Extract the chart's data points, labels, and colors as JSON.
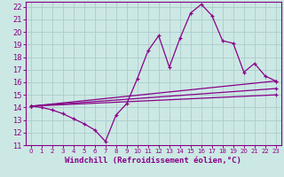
{
  "xlabel": "Windchill (Refroidissement éolien,°C)",
  "background_color": "#cce8e4",
  "grid_color": "#aacccc",
  "line_color": "#880088",
  "spine_color": "#880088",
  "xlim": [
    -0.5,
    23.5
  ],
  "ylim": [
    11,
    22.4
  ],
  "xticks": [
    0,
    1,
    2,
    3,
    4,
    5,
    6,
    7,
    8,
    9,
    10,
    11,
    12,
    13,
    14,
    15,
    16,
    17,
    18,
    19,
    20,
    21,
    22,
    23
  ],
  "yticks": [
    11,
    12,
    13,
    14,
    15,
    16,
    17,
    18,
    19,
    20,
    21,
    22
  ],
  "series_main": {
    "x": [
      0,
      1,
      2,
      3,
      4,
      5,
      6,
      7,
      8,
      9,
      10,
      11,
      12,
      13,
      14,
      15,
      16,
      17,
      18,
      19,
      20,
      21,
      22,
      23
    ],
    "y": [
      14.1,
      14.0,
      13.8,
      13.5,
      13.1,
      12.7,
      12.2,
      11.3,
      13.4,
      14.3,
      16.3,
      18.5,
      19.7,
      17.2,
      19.5,
      21.5,
      22.2,
      21.3,
      19.3,
      19.1,
      16.8,
      17.5,
      16.5,
      16.1
    ]
  },
  "trend_lines": [
    {
      "x": [
        0,
        23
      ],
      "y": [
        14.1,
        16.1
      ]
    },
    {
      "x": [
        0,
        23
      ],
      "y": [
        14.1,
        15.5
      ]
    },
    {
      "x": [
        0,
        23
      ],
      "y": [
        14.1,
        15.0
      ]
    }
  ],
  "tick_fontsize": 6,
  "xlabel_fontsize": 6.5
}
